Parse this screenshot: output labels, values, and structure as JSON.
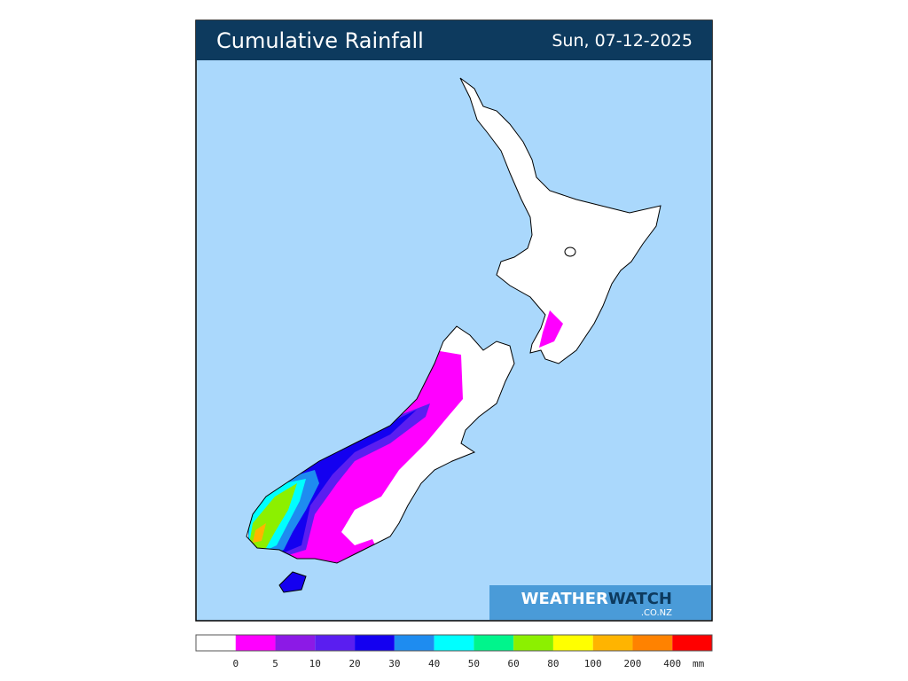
{
  "header": {
    "title": "Cumulative Rainfall",
    "date": "Sun, 07-12-2025"
  },
  "logo": {
    "brand": "WEATHER",
    "brand_accent": "WATCH",
    "domain": ".CO.NZ"
  },
  "legend": {
    "colors": [
      "#ffffff",
      "#ff00ff",
      "#8c1ae6",
      "#5a1ef0",
      "#1400f0",
      "#1e8cf0",
      "#00ffff",
      "#00f58c",
      "#8cf000",
      "#ffff00",
      "#ffb400",
      "#ff8200",
      "#ff0000"
    ],
    "ticks": [
      0,
      5,
      10,
      20,
      30,
      40,
      50,
      60,
      80,
      100,
      200,
      400
    ],
    "unit": "mm"
  }
}
